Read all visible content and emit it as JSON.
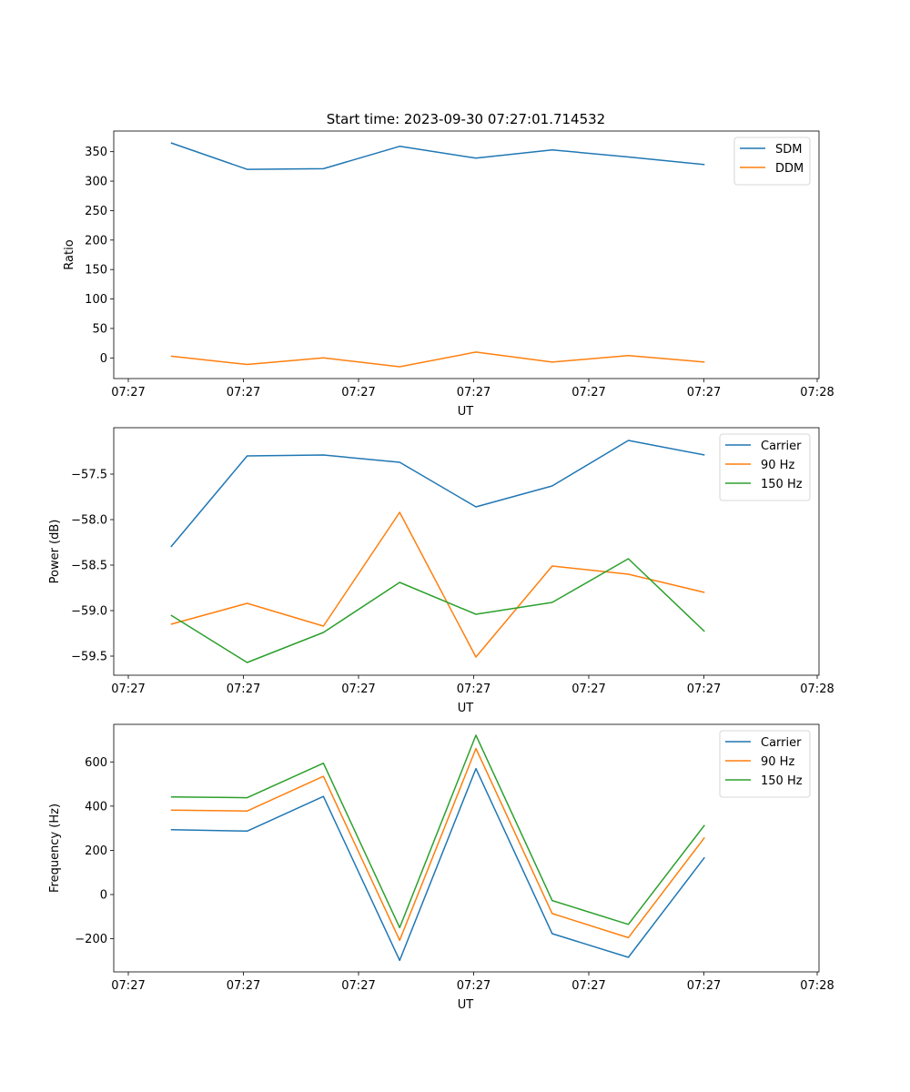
{
  "figure_title": "Start time: 2023-09-30 07:27:01.714532",
  "colors": {
    "c0": "#1f77b4",
    "c1": "#ff7f0e",
    "c2": "#2ca02c"
  },
  "chart_data": [
    {
      "type": "line",
      "title": "Start time: 2023-09-30 07:27:01.714532",
      "xlabel": "UT",
      "ylabel": "Ratio",
      "x_ticks": [
        "07:27",
        "07:27",
        "07:27",
        "07:27",
        "07:27",
        "07:27",
        "07:28"
      ],
      "x_index": [
        1,
        2,
        3,
        4,
        5,
        6,
        7,
        8
      ],
      "xlim": [
        0.25,
        9.5
      ],
      "ylim": [
        -35,
        385
      ],
      "y_ticks": [
        0,
        50,
        100,
        150,
        200,
        250,
        300,
        350
      ],
      "y_tick_labels": [
        "0",
        "50",
        "100",
        "150",
        "200",
        "250",
        "300",
        "350"
      ],
      "legend": "top-right",
      "series": [
        {
          "name": "SDM",
          "color": "#1f77b4",
          "values": [
            365,
            320,
            321,
            359,
            339,
            353,
            341,
            328
          ]
        },
        {
          "name": "DDM",
          "color": "#ff7f0e",
          "values": [
            3,
            -11,
            0,
            -15,
            10,
            -7,
            4,
            -7
          ]
        }
      ]
    },
    {
      "type": "line",
      "xlabel": "UT",
      "ylabel": "Power (dB)",
      "x_ticks": [
        "07:27",
        "07:27",
        "07:27",
        "07:27",
        "07:27",
        "07:27",
        "07:28"
      ],
      "x_index": [
        1,
        2,
        3,
        4,
        5,
        6,
        7,
        8
      ],
      "xlim": [
        0.25,
        9.5
      ],
      "ylim": [
        -59.71,
        -56.99
      ],
      "y_ticks": [
        -59.5,
        -59.0,
        -58.5,
        -58.0,
        -57.5
      ],
      "y_tick_labels": [
        "−59.5",
        "−59.0",
        "−58.5",
        "−58.0",
        "−57.5"
      ],
      "legend": "top-right",
      "series": [
        {
          "name": "Carrier",
          "color": "#1f77b4",
          "values": [
            -58.3,
            -57.3,
            -57.29,
            -57.37,
            -57.86,
            -57.63,
            -57.13,
            -57.29
          ]
        },
        {
          "name": "90 Hz",
          "color": "#ff7f0e",
          "values": [
            -59.15,
            -58.92,
            -59.17,
            -57.92,
            -59.51,
            -58.51,
            -58.6,
            -58.8
          ]
        },
        {
          "name": "150 Hz",
          "color": "#2ca02c",
          "values": [
            -59.05,
            -59.57,
            -59.24,
            -58.69,
            -59.04,
            -58.91,
            -58.43,
            -59.23
          ]
        }
      ]
    },
    {
      "type": "line",
      "xlabel": "UT",
      "ylabel": "Frequency (Hz)",
      "x_ticks": [
        "07:27",
        "07:27",
        "07:27",
        "07:27",
        "07:27",
        "07:27",
        "07:28"
      ],
      "x_index": [
        1,
        2,
        3,
        4,
        5,
        6,
        7,
        8
      ],
      "xlim": [
        0.25,
        9.5
      ],
      "ylim": [
        -350,
        770
      ],
      "y_ticks": [
        -200,
        0,
        200,
        400,
        600
      ],
      "y_tick_labels": [
        "−200",
        "0",
        "200",
        "400",
        "600"
      ],
      "legend": "top-right",
      "series": [
        {
          "name": "Carrier",
          "color": "#1f77b4",
          "values": [
            293,
            287,
            444,
            -298,
            570,
            -177,
            -284,
            168
          ]
        },
        {
          "name": "90 Hz",
          "color": "#ff7f0e",
          "values": [
            382,
            378,
            535,
            -207,
            661,
            -86,
            -195,
            258
          ]
        },
        {
          "name": "150 Hz",
          "color": "#2ca02c",
          "values": [
            442,
            438,
            594,
            -150,
            721,
            -27,
            -135,
            314
          ]
        }
      ]
    }
  ]
}
